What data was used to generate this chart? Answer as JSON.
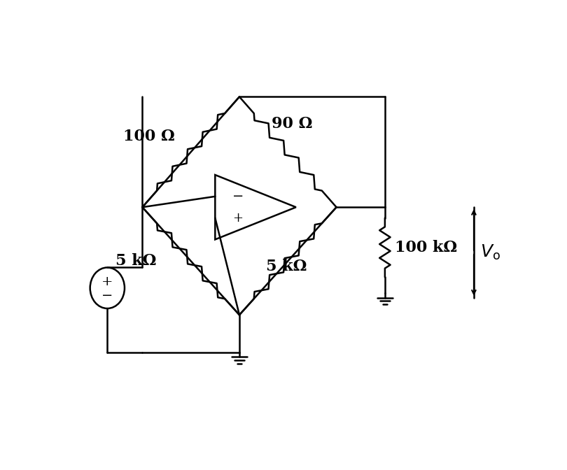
{
  "bg_color": "#ffffff",
  "line_color": "#000000",
  "fig_width": 8.1,
  "fig_height": 6.72,
  "dpi": 100,
  "title": "",
  "labels": {
    "r100": "100 Ω",
    "r90": "90 Ω",
    "r5kL": "5 kΩ",
    "r5kR": "5 kΩ",
    "r100k": "100 kΩ",
    "vo": "$V_\\mathrm{o}$"
  },
  "font_size": 16
}
